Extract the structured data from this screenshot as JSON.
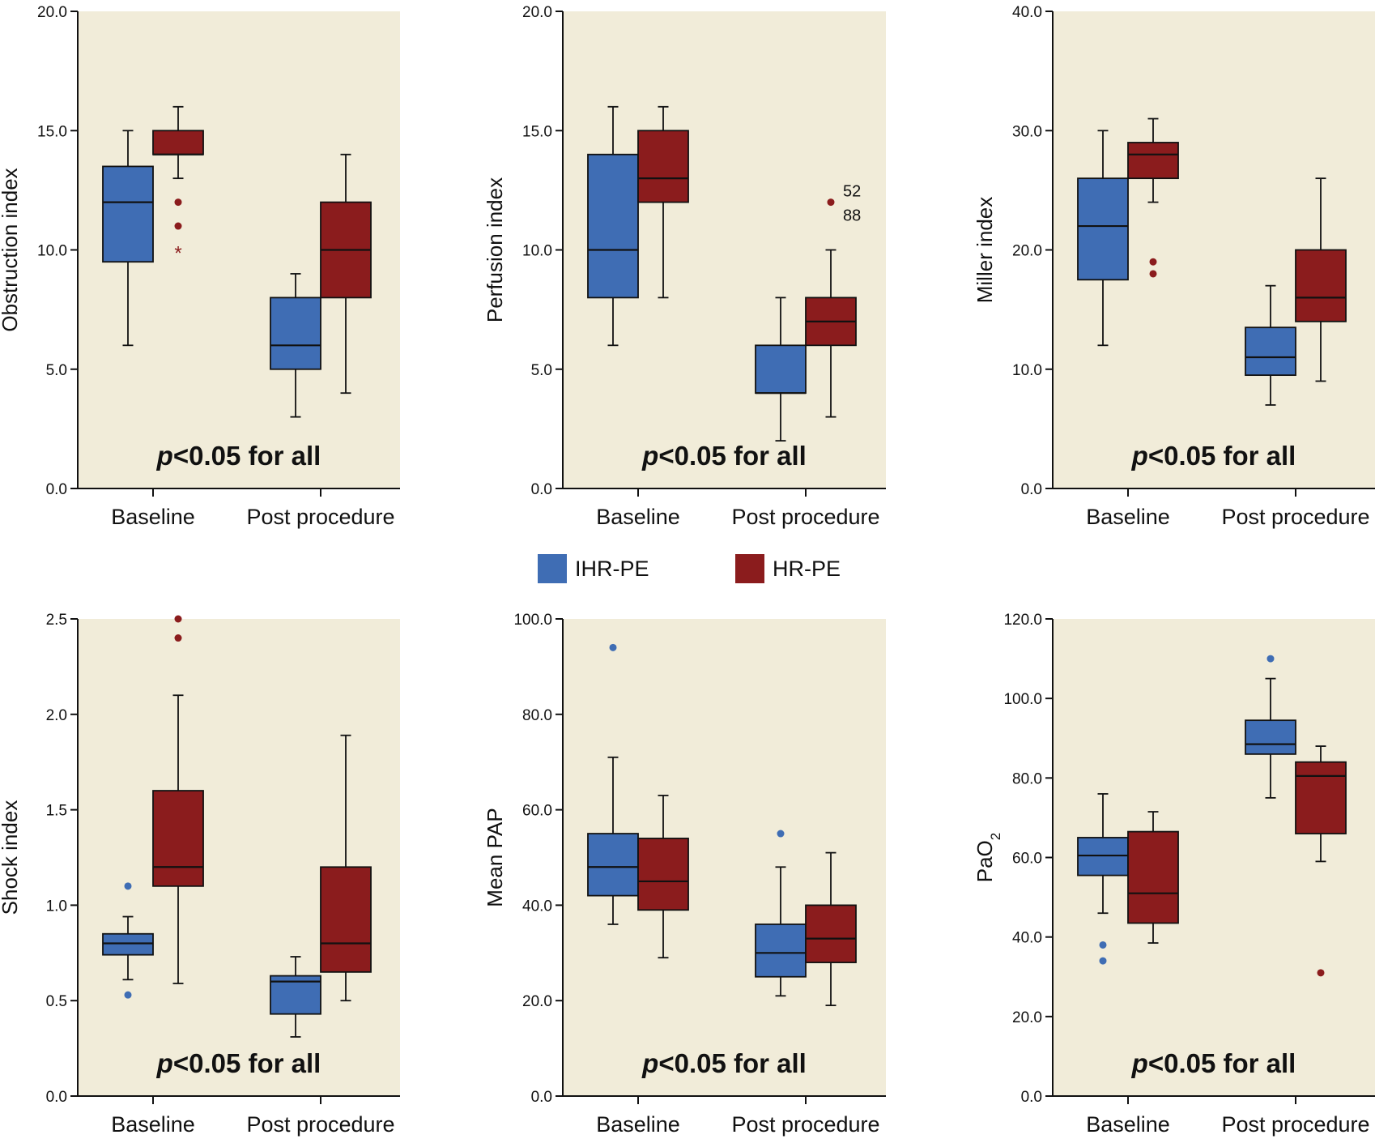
{
  "legend": {
    "items": [
      {
        "label": "IHR-PE",
        "color": "#3f6db4"
      },
      {
        "label": "HR-PE",
        "color": "#8b1c1d"
      }
    ]
  },
  "colors": {
    "panel_background": "#f1ecd9",
    "ihr": "#3f6db4",
    "hr": "#8b1c1d",
    "axis": "#111111"
  },
  "chart_data": [
    {
      "type": "box",
      "ylabel": "Obstruction index",
      "ylim": [
        0,
        20
      ],
      "yticks": [
        "0.0",
        "5.0",
        "10.0",
        "15.0",
        "20.0"
      ],
      "categories": [
        "Baseline",
        "Post procedure"
      ],
      "annotation": {
        "italic": "p",
        "rest": "<0.05 for all"
      },
      "series": [
        {
          "name": "IHR-PE",
          "boxes": [
            {
              "min": 6,
              "q1": 9.5,
              "median": 12,
              "q3": 13.5,
              "max": 15,
              "outliers": []
            },
            {
              "min": 3,
              "q1": 5,
              "median": 6,
              "q3": 8,
              "max": 9,
              "outliers": []
            }
          ]
        },
        {
          "name": "HR-PE",
          "boxes": [
            {
              "min": 13,
              "q1": 14,
              "median": 14,
              "q3": 15,
              "max": 16,
              "outliers": [
                12,
                11
              ],
              "extremes": [
                10
              ]
            },
            {
              "min": 4,
              "q1": 8,
              "median": 10,
              "q3": 12,
              "max": 14,
              "outliers": []
            }
          ]
        }
      ]
    },
    {
      "type": "box",
      "ylabel": "Perfusion index",
      "ylim": [
        0,
        20
      ],
      "yticks": [
        "0.0",
        "5.0",
        "10.0",
        "15.0",
        "20.0"
      ],
      "categories": [
        "Baseline",
        "Post procedure"
      ],
      "annotation": {
        "italic": "p",
        "rest": "<0.05 for all"
      },
      "series": [
        {
          "name": "IHR-PE",
          "boxes": [
            {
              "min": 6,
              "q1": 8,
              "median": 10,
              "q3": 14,
              "max": 16,
              "outliers": []
            },
            {
              "min": 2,
              "q1": 4,
              "median": 4,
              "q3": 6,
              "max": 8,
              "outliers": []
            }
          ]
        },
        {
          "name": "HR-PE",
          "boxes": [
            {
              "min": 8,
              "q1": 12,
              "median": 13,
              "q3": 15,
              "max": 16,
              "outliers": []
            },
            {
              "min": 3,
              "q1": 6,
              "median": 7,
              "q3": 8,
              "max": 10,
              "outliers": [
                12
              ],
              "outlier_labels": [
                "52",
                "88"
              ]
            }
          ]
        }
      ]
    },
    {
      "type": "box",
      "ylabel": "Miller index",
      "ylim": [
        0,
        40
      ],
      "yticks": [
        "0.0",
        "10.0",
        "20.0",
        "30.0",
        "40.0"
      ],
      "categories": [
        "Baseline",
        "Post procedure"
      ],
      "annotation": {
        "italic": "p",
        "rest": "<0.05 for all"
      },
      "series": [
        {
          "name": "IHR-PE",
          "boxes": [
            {
              "min": 12,
              "q1": 17.5,
              "median": 22,
              "q3": 26,
              "max": 30,
              "outliers": []
            },
            {
              "min": 7,
              "q1": 9.5,
              "median": 11,
              "q3": 13.5,
              "max": 17,
              "outliers": []
            }
          ]
        },
        {
          "name": "HR-PE",
          "boxes": [
            {
              "min": 24,
              "q1": 26,
              "median": 28,
              "q3": 29,
              "max": 31,
              "outliers": [
                19,
                18
              ]
            },
            {
              "min": 9,
              "q1": 14,
              "median": 16,
              "q3": 20,
              "max": 26,
              "outliers": []
            }
          ]
        }
      ]
    },
    {
      "type": "box",
      "ylabel": "Shock index",
      "ylim": [
        0,
        2.5
      ],
      "yticks": [
        "0.0",
        "0.5",
        "1.0",
        "1.5",
        "2.0",
        "2.5"
      ],
      "categories": [
        "Baseline",
        "Post procedure"
      ],
      "annotation": {
        "italic": "p",
        "rest": "<0.05 for all"
      },
      "series": [
        {
          "name": "IHR-PE",
          "boxes": [
            {
              "min": 0.61,
              "q1": 0.74,
              "median": 0.8,
              "q3": 0.85,
              "max": 0.94,
              "outliers": [
                1.1,
                0.53
              ]
            },
            {
              "min": 0.31,
              "q1": 0.43,
              "median": 0.6,
              "q3": 0.63,
              "max": 0.73,
              "outliers": []
            }
          ]
        },
        {
          "name": "HR-PE",
          "boxes": [
            {
              "min": 0.59,
              "q1": 1.1,
              "median": 1.2,
              "q3": 1.6,
              "max": 2.1,
              "outliers": [
                2.5,
                2.4
              ]
            },
            {
              "min": 0.5,
              "q1": 0.65,
              "median": 0.8,
              "q3": 1.2,
              "max": 1.89,
              "outliers": []
            }
          ]
        }
      ]
    },
    {
      "type": "box",
      "ylabel": "Mean PAP",
      "ylim": [
        0,
        100
      ],
      "yticks": [
        "0.0",
        "20.0",
        "40.0",
        "60.0",
        "80.0",
        "100.0"
      ],
      "categories": [
        "Baseline",
        "Post procedure"
      ],
      "annotation": {
        "italic": "p",
        "rest": "<0.05 for all"
      },
      "series": [
        {
          "name": "IHR-PE",
          "boxes": [
            {
              "min": 36,
              "q1": 42,
              "median": 48,
              "q3": 55,
              "max": 71,
              "outliers": [
                94
              ]
            },
            {
              "min": 21,
              "q1": 25,
              "median": 30,
              "q3": 36,
              "max": 48,
              "outliers": [
                55
              ]
            }
          ]
        },
        {
          "name": "HR-PE",
          "boxes": [
            {
              "min": 29,
              "q1": 39,
              "median": 45,
              "q3": 54,
              "max": 63,
              "outliers": []
            },
            {
              "min": 19,
              "q1": 28,
              "median": 33,
              "q3": 40,
              "max": 51,
              "outliers": []
            }
          ]
        }
      ]
    },
    {
      "type": "box",
      "ylabel": "PaO",
      "ylabel_sub": "2",
      "ylim": [
        0,
        120
      ],
      "yticks": [
        "0.0",
        "20.0",
        "40.0",
        "60.0",
        "80.0",
        "100.0",
        "120.0"
      ],
      "categories": [
        "Baseline",
        "Post procedure"
      ],
      "annotation": {
        "italic": "p",
        "rest": "<0.05 for all"
      },
      "series": [
        {
          "name": "IHR-PE",
          "boxes": [
            {
              "min": 46,
              "q1": 55.5,
              "median": 60.5,
              "q3": 65,
              "max": 76,
              "outliers": [
                38,
                34
              ]
            },
            {
              "min": 75,
              "q1": 86,
              "median": 88.5,
              "q3": 94.5,
              "max": 105,
              "outliers": [
                110
              ]
            }
          ]
        },
        {
          "name": "HR-PE",
          "boxes": [
            {
              "min": 38.5,
              "q1": 43.5,
              "median": 51,
              "q3": 66.5,
              "max": 71.5,
              "outliers": []
            },
            {
              "min": 59,
              "q1": 66,
              "median": 80.5,
              "q3": 84,
              "max": 88,
              "outliers": [
                31
              ]
            }
          ]
        }
      ]
    }
  ]
}
